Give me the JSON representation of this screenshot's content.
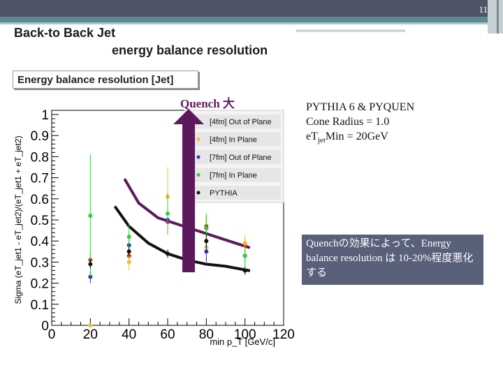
{
  "slide": {
    "page_number": "11",
    "title_line1": "Back-to Back Jet",
    "title_line2": "energy balance resolution",
    "quench_label": "Quench 大",
    "info_line1": "PYTHIA 6 & PYQUEN",
    "info_line2": "Cone Radius = 1.0",
    "info_line3_pre": "eT",
    "info_line3_sub": "jet",
    "info_line3_post": "Min = 20GeV",
    "note_text": "Quenchの効果によって、Energy balance resolution は 10-20%程度悪化する",
    "colors": {
      "accent": "#5c1a5c",
      "band": "#4d5468",
      "note_bg": "#58607a"
    }
  },
  "chart_data": {
    "type": "scatter",
    "title": "Energy balance resolution [Jet]",
    "xlabel": "min p_T [GeV/c]",
    "ylabel": "Sigma (eT_jet1 - eT_jet2)/(eT_jet1 + eT_jet2)",
    "xlim": [
      0,
      120
    ],
    "ylim": [
      0,
      1
    ],
    "xticks": [
      "0",
      "20",
      "40",
      "60",
      "80",
      "100",
      "120"
    ],
    "yticks": [
      "0",
      "0.1",
      "0.2",
      "0.3",
      "0.4",
      "0.5",
      "0.6",
      "0.7",
      "0.8",
      "0.9",
      "1"
    ],
    "legend_position": "top-right",
    "series": [
      {
        "name": "[4fm] Out of Plane",
        "color": "#dd2222",
        "x": [
          20,
          40,
          60,
          80,
          100
        ],
        "y": [
          0.31,
          0.33,
          0.49,
          0.47,
          0.38
        ],
        "err": [
          0.03,
          0.04,
          0.05,
          0.05,
          0.03
        ]
      },
      {
        "name": "[4fm] In Plane",
        "color": "#f2c21a",
        "x": [
          20,
          40,
          60,
          80,
          100
        ],
        "y": [
          0.0,
          0.3,
          0.61,
          0.37,
          0.39
        ],
        "err": [
          0.0,
          0.04,
          0.14,
          0.07,
          0.04
        ]
      },
      {
        "name": "[7fm] Out of Plane",
        "color": "#2233cc",
        "x": [
          20,
          40,
          60,
          80,
          100
        ],
        "y": [
          0.23,
          0.38,
          0.5,
          0.35,
          0.33
        ],
        "err": [
          0.03,
          0.04,
          0.06,
          0.05,
          0.03
        ]
      },
      {
        "name": "[7fm] In Plane",
        "color": "#33cc33",
        "x": [
          20,
          40,
          60,
          80,
          100
        ],
        "y": [
          0.52,
          0.42,
          0.53,
          0.46,
          0.33
        ],
        "err": [
          0.29,
          0.06,
          0.1,
          0.07,
          0.05
        ]
      },
      {
        "name": "PYTHIA",
        "color": "#111111",
        "x": [
          20,
          40,
          60,
          80,
          100
        ],
        "y": [
          0.29,
          0.35,
          0.34,
          0.4,
          0.26
        ],
        "err": [
          0.02,
          0.02,
          0.02,
          0.03,
          0.02
        ]
      }
    ],
    "curves": [
      {
        "color": "#5c1a5c",
        "x": [
          38,
          45,
          55,
          65,
          75,
          85,
          95,
          102
        ],
        "y": [
          0.69,
          0.58,
          0.51,
          0.48,
          0.45,
          0.42,
          0.39,
          0.37
        ]
      },
      {
        "color": "#111111",
        "x": [
          33,
          40,
          50,
          60,
          70,
          80,
          90,
          102
        ],
        "y": [
          0.56,
          0.47,
          0.39,
          0.34,
          0.31,
          0.29,
          0.28,
          0.26
        ]
      }
    ]
  }
}
